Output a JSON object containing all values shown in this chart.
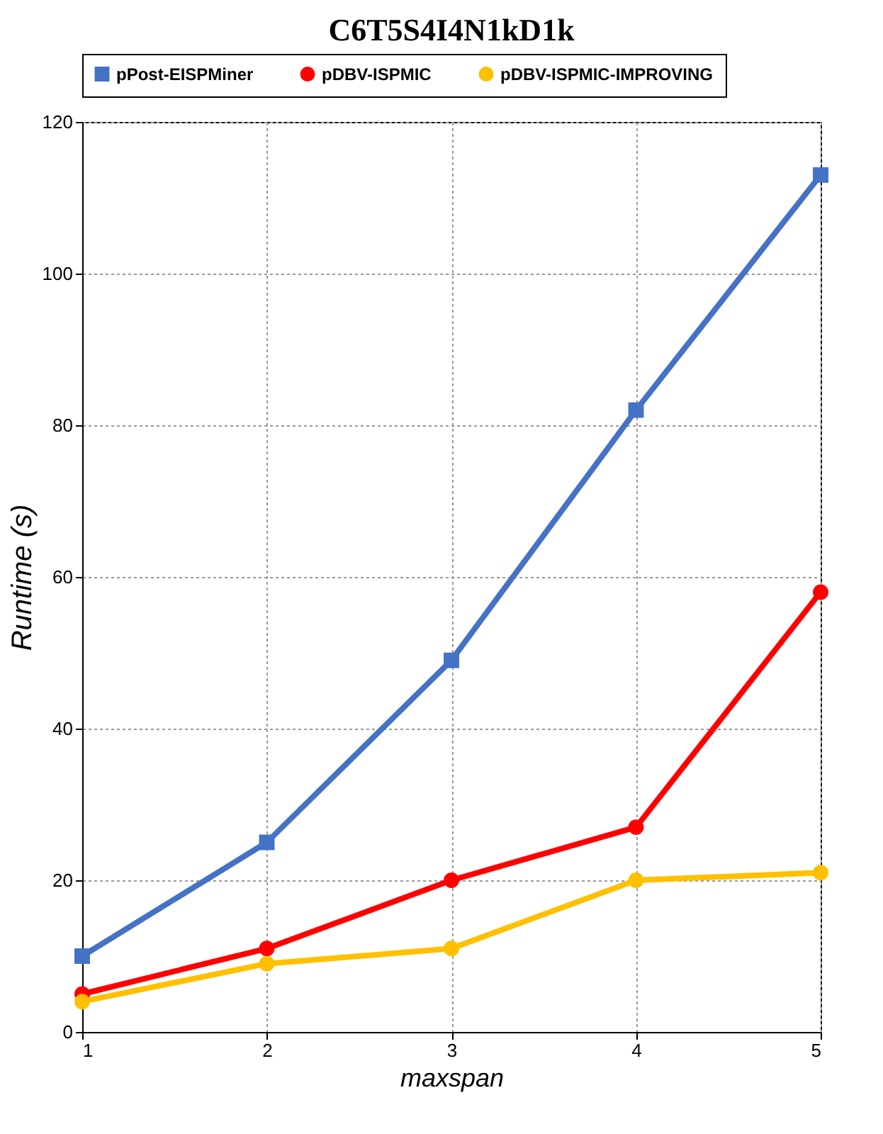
{
  "chart_data": {
    "type": "line",
    "title": "C6T5S4I4N1kD1k",
    "xlabel": "maxspan",
    "ylabel": "Runtime (s)",
    "x": [
      1,
      2,
      3,
      4,
      5
    ],
    "series": [
      {
        "name": "pPost-EISPMiner",
        "color": "#4472c4",
        "marker": "square",
        "values": [
          10,
          25,
          49,
          82,
          113
        ]
      },
      {
        "name": "pDBV-ISPMIC",
        "color": "#ff0000",
        "marker": "circle",
        "values": [
          5,
          11,
          20,
          27,
          58
        ]
      },
      {
        "name": "pDBV-ISPMIC-IMPROVING",
        "color": "#ffc000",
        "marker": "circle",
        "values": [
          4,
          9,
          11,
          20,
          21
        ]
      }
    ],
    "xlim": [
      1,
      5
    ],
    "xticks": [
      1,
      2,
      3,
      4,
      5
    ],
    "ylim": [
      0,
      120
    ],
    "yticks": [
      0,
      20,
      40,
      60,
      80,
      100,
      120
    ],
    "grid": true,
    "legend": "top",
    "line_style": "solid"
  }
}
